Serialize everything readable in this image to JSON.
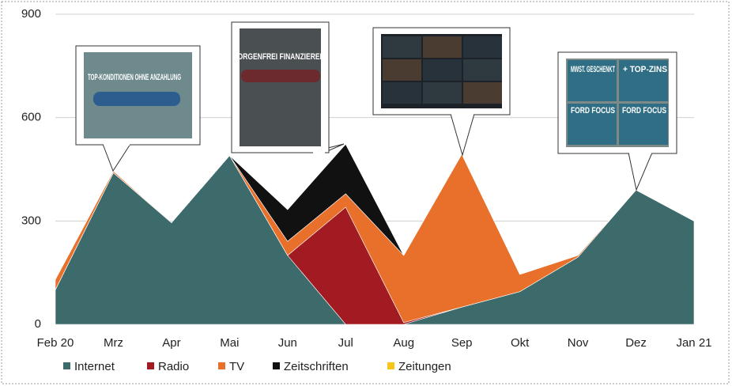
{
  "chart_data": {
    "type": "stacked-area",
    "categories": [
      "Feb 20",
      "Mrz",
      "Apr",
      "Mai",
      "Jun",
      "Jul",
      "Aug",
      "Sep",
      "Okt",
      "Nov",
      "Dez",
      "Jan 21"
    ],
    "series": [
      {
        "name": "Internet",
        "color": "#3d6b6b",
        "values": [
          100,
          440,
          295,
          490,
          200,
          0,
          0,
          50,
          95,
          195,
          390,
          300
        ]
      },
      {
        "name": "Radio",
        "color": "#a31b22",
        "values": [
          0,
          0,
          0,
          0,
          0,
          340,
          5,
          0,
          0,
          0,
          0,
          0
        ]
      },
      {
        "name": "TV",
        "color": "#e8702a",
        "values": [
          30,
          5,
          0,
          0,
          41,
          39,
          195,
          444,
          50,
          5,
          0,
          0
        ]
      },
      {
        "name": "Zeitschriften",
        "color": "#111111",
        "values": [
          0,
          0,
          0,
          0,
          92,
          144,
          0,
          0,
          0,
          0,
          0,
          0
        ]
      },
      {
        "name": "Zeitungen",
        "color": "#f5c518",
        "values": [
          0,
          0,
          0,
          0,
          0,
          0,
          0,
          0,
          0,
          0,
          0,
          0
        ]
      }
    ],
    "ylim": [
      0,
      900
    ],
    "yticks": [
      0,
      300,
      600,
      900
    ],
    "grid": true,
    "legend": "bottom",
    "annotations": [
      "TOP-KONDITIONEN OHNE ANZAHLUNG",
      "SORGENFREI FINANZIEREN.",
      "MWST. GESCHENKT",
      "+ TOP-ZINS",
      "FORD FOCUS",
      "FORD FOCUS"
    ]
  }
}
